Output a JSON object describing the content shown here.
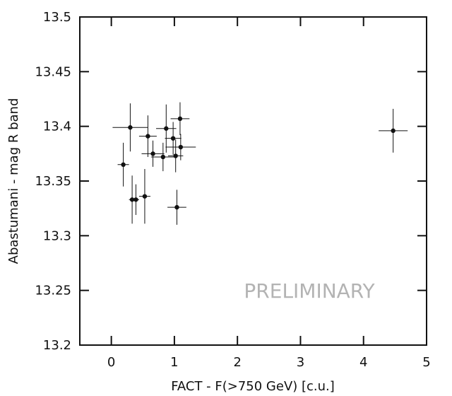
{
  "chart_data": {
    "type": "scatter",
    "title": "",
    "xlabel": "FACT - F(>750 GeV) [c.u.]",
    "ylabel": "Abastumani - mag R band",
    "xlim": [
      -0.5,
      5
    ],
    "ylim": [
      13.2,
      13.5
    ],
    "xticks": [
      0,
      1,
      2,
      3,
      4,
      5
    ],
    "xtick_labels": [
      "0",
      "1",
      "2",
      "3",
      "4",
      "5"
    ],
    "yticks": [
      13.2,
      13.25,
      13.3,
      13.35,
      13.4,
      13.45,
      13.5
    ],
    "ytick_labels": [
      "13.2",
      "13.25",
      "13.3",
      "13.35",
      "13.4",
      "13.45",
      "13.5"
    ],
    "grid": false,
    "annotation": "PRELIMINARY",
    "points": [
      {
        "x": 0.19,
        "y": 13.365,
        "xerr": 0.09,
        "yerr": 0.02
      },
      {
        "x": 0.3,
        "y": 13.399,
        "xerr": 0.28,
        "yerr": 0.022
      },
      {
        "x": 0.33,
        "y": 13.333,
        "xerr": 0.05,
        "yerr": 0.022
      },
      {
        "x": 0.39,
        "y": 13.333,
        "xerr": 0.05,
        "yerr": 0.014
      },
      {
        "x": 0.53,
        "y": 13.336,
        "xerr": 0.09,
        "yerr": 0.025
      },
      {
        "x": 0.58,
        "y": 13.391,
        "xerr": 0.14,
        "yerr": 0.019
      },
      {
        "x": 0.66,
        "y": 13.375,
        "xerr": 0.18,
        "yerr": 0.012
      },
      {
        "x": 0.82,
        "y": 13.372,
        "xerr": 0.19,
        "yerr": 0.013
      },
      {
        "x": 0.87,
        "y": 13.398,
        "xerr": 0.16,
        "yerr": 0.022
      },
      {
        "x": 0.98,
        "y": 13.389,
        "xerr": 0.13,
        "yerr": 0.015
      },
      {
        "x": 1.02,
        "y": 13.373,
        "xerr": 0.12,
        "yerr": 0.015
      },
      {
        "x": 1.04,
        "y": 13.326,
        "xerr": 0.15,
        "yerr": 0.016
      },
      {
        "x": 1.09,
        "y": 13.407,
        "xerr": 0.15,
        "yerr": 0.015
      },
      {
        "x": 1.1,
        "y": 13.381,
        "xerr": 0.24,
        "yerr": 0.012
      },
      {
        "x": 4.47,
        "y": 13.396,
        "xerr": 0.23,
        "yerr": 0.02
      }
    ]
  }
}
